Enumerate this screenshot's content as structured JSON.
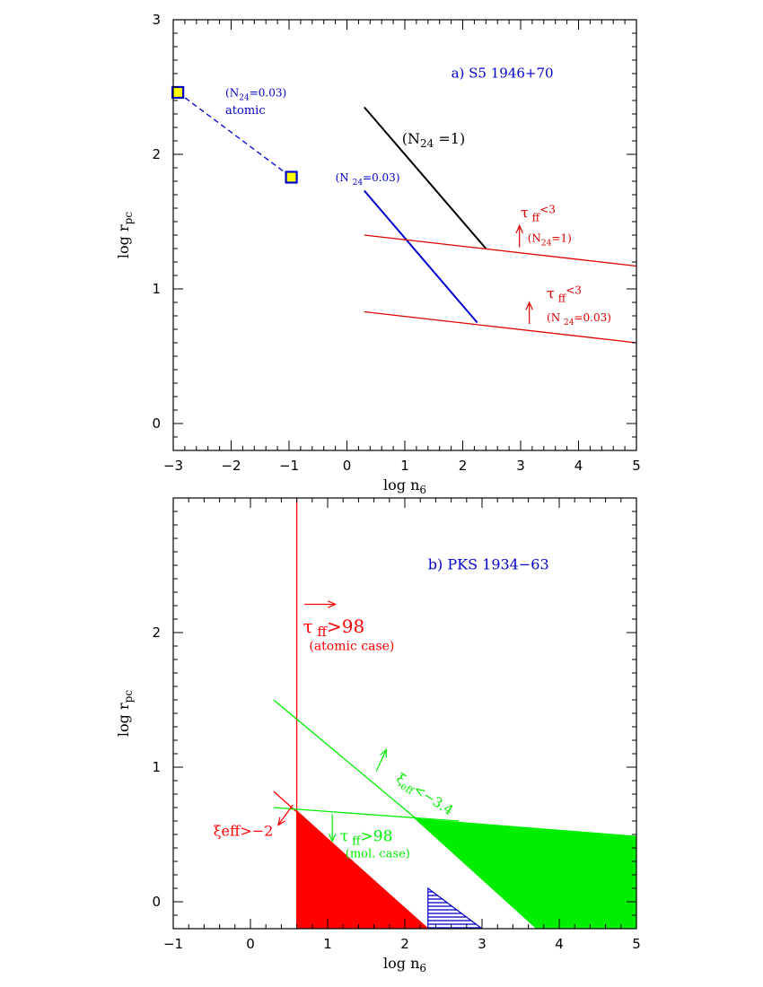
{
  "chart_data": [
    {
      "type": "line",
      "panel": "a",
      "title": "a) S5 1946+70",
      "xlabel": "log n",
      "xlabel_sub": "6",
      "ylabel": "log r",
      "ylabel_sub": "pc",
      "xlim": [
        -3,
        5
      ],
      "ylim": [
        -0.2,
        3
      ],
      "xticks": [
        "−3",
        "−2",
        "−1",
        "0",
        "1",
        "2",
        "3",
        "4",
        "5"
      ],
      "xtick_values": [
        -3,
        -2,
        -1,
        0,
        1,
        2,
        3,
        4,
        5
      ],
      "yticks": [
        "0",
        "1",
        "2",
        "3"
      ],
      "ytick_values": [
        0,
        1,
        2,
        3
      ],
      "colors": {
        "black": "#000000",
        "blue": "#0000cc",
        "red": "#dd0000",
        "yellow": "#ffff00",
        "green": "#00dd00"
      },
      "series": [
        {
          "id": "atomic-dashed",
          "color": "#0000cc",
          "style": "dashed",
          "points": [
            [
              -2.92,
              2.46
            ],
            [
              -0.96,
              1.83
            ]
          ]
        },
        {
          "id": "n24-1-black",
          "color": "#000000",
          "style": "solid",
          "points": [
            [
              0.3,
              2.35
            ],
            [
              2.4,
              1.3
            ]
          ]
        },
        {
          "id": "n24-003-blue",
          "color": "#0000cc",
          "style": "solid",
          "points": [
            [
              0.3,
              1.73
            ],
            [
              2.25,
              0.75
            ]
          ]
        },
        {
          "id": "tau-n24-1-red",
          "color": "#dd0000",
          "style": "solid",
          "points": [
            [
              0.3,
              1.4
            ],
            [
              5,
              1.17
            ]
          ]
        },
        {
          "id": "tau-n24-003-red",
          "color": "#dd0000",
          "style": "solid",
          "points": [
            [
              0.3,
              0.83
            ],
            [
              5,
              0.6
            ]
          ]
        }
      ],
      "markers": [
        {
          "id": "square-1",
          "x": -2.92,
          "y": 2.46,
          "fill": "#ffff00",
          "stroke": "#0000cc"
        },
        {
          "id": "square-2",
          "x": -0.96,
          "y": 1.83,
          "fill": "#ffff00",
          "stroke": "#0000cc"
        }
      ],
      "arrows": [
        {
          "id": "arrow-tau-1",
          "color": "#dd0000",
          "from": [
            2.98,
            1.31
          ],
          "to": [
            2.98,
            1.47
          ]
        },
        {
          "id": "arrow-tau-2",
          "color": "#dd0000",
          "from": [
            3.15,
            0.74
          ],
          "to": [
            3.15,
            0.9
          ]
        }
      ],
      "annotations": [
        {
          "id": "title",
          "x": 1.8,
          "y": 2.57,
          "color": "#0000cc",
          "size": 15,
          "parts": [
            {
              "t": "a) S5 1946+70"
            }
          ]
        },
        {
          "id": "atomic-n24",
          "x": -2.1,
          "y": 2.43,
          "color": "#0000cc",
          "size": 12,
          "parts": [
            {
              "t": "(N"
            },
            {
              "t": "24",
              "sub": true
            },
            {
              "t": "=0.03)"
            }
          ]
        },
        {
          "id": "atomic-word",
          "x": -2.1,
          "y": 2.3,
          "color": "#0000cc",
          "size": 13,
          "parts": [
            {
              "t": "atomic"
            }
          ]
        },
        {
          "id": "label-n24-1",
          "x": 0.95,
          "y": 2.08,
          "color": "#000000",
          "size": 16,
          "parts": [
            {
              "t": "(N"
            },
            {
              "t": "24",
              "sub": true
            },
            {
              "t": " =1)"
            }
          ]
        },
        {
          "id": "label-n24-003-blue",
          "x": -0.2,
          "y": 1.8,
          "color": "#0000cc",
          "size": 12,
          "parts": [
            {
              "t": "(N "
            },
            {
              "t": "24",
              "sub": true
            },
            {
              "t": "=0.03)"
            }
          ]
        },
        {
          "id": "tau-1-symbol",
          "x": 3.0,
          "y": 1.53,
          "color": "#dd0000",
          "size": 16,
          "parts": [
            {
              "t": "τ"
            },
            {
              "t": " ff",
              "sub": true
            },
            {
              "t": "<3",
              "sup": true
            }
          ]
        },
        {
          "id": "tau-1-n24",
          "x": 3.12,
          "y": 1.35,
          "color": "#dd0000",
          "size": 12,
          "parts": [
            {
              "t": "(N"
            },
            {
              "t": "24",
              "sub": true
            },
            {
              "t": "=1)"
            }
          ]
        },
        {
          "id": "tau-2-symbol",
          "x": 3.45,
          "y": 0.93,
          "color": "#dd0000",
          "size": 16,
          "parts": [
            {
              "t": "τ"
            },
            {
              "t": " ff",
              "sub": true
            },
            {
              "t": "<3",
              "sup": true
            }
          ]
        },
        {
          "id": "tau-2-n24",
          "x": 3.45,
          "y": 0.76,
          "color": "#dd0000",
          "size": 12,
          "parts": [
            {
              "t": "(N "
            },
            {
              "t": "24",
              "sub": true
            },
            {
              "t": "=0.03)"
            }
          ]
        }
      ]
    },
    {
      "type": "area",
      "panel": "b",
      "title": "b) PKS 1934−63",
      "xlabel": "log n",
      "xlabel_sub": "6",
      "ylabel": "log r",
      "ylabel_sub": "pc",
      "xlim": [
        -1,
        5
      ],
      "ylim": [
        -0.2,
        3
      ],
      "xticks": [
        "−1",
        "0",
        "1",
        "2",
        "3",
        "4",
        "5"
      ],
      "xtick_values": [
        -1,
        0,
        1,
        2,
        3,
        4,
        5
      ],
      "yticks": [
        "0",
        "1",
        "2"
      ],
      "ytick_values": [
        0,
        1,
        2
      ],
      "colors": {
        "red": "#ff0000",
        "green": "#00ee00",
        "blue": "#0000cc",
        "black": "#000000"
      },
      "regions": [
        {
          "id": "red-region",
          "fill": "#ff0000",
          "points": [
            [
              0.6,
              0.68
            ],
            [
              0.6,
              -0.2
            ],
            [
              2.3,
              -0.2
            ]
          ]
        },
        {
          "id": "green-region",
          "fill": "#00ee00",
          "points": [
            [
              2.12,
              0.62
            ],
            [
              5,
              0.49
            ],
            [
              5,
              -0.2
            ],
            [
              3.7,
              -0.2
            ]
          ]
        }
      ],
      "hatched": [
        {
          "id": "blue-hatch",
          "color": "#0000cc",
          "points": [
            [
              2.3,
              0.1
            ],
            [
              3.0,
              -0.2
            ],
            [
              2.3,
              -0.2
            ]
          ]
        }
      ],
      "series": [
        {
          "id": "tau-atomic-vertical",
          "color": "#ff0000",
          "style": "solid",
          "points": [
            [
              0.6,
              -0.2
            ],
            [
              0.6,
              3.0
            ]
          ]
        },
        {
          "id": "xi-gt-minus2",
          "color": "#ff0000",
          "style": "solid",
          "points": [
            [
              0.3,
              0.82
            ],
            [
              2.3,
              -0.2
            ]
          ]
        },
        {
          "id": "xi-lt-minus34",
          "color": "#00ee00",
          "style": "solid",
          "points": [
            [
              0.3,
              1.5
            ],
            [
              2.6,
              0.4
            ]
          ]
        },
        {
          "id": "tau-mol",
          "color": "#00ee00",
          "style": "solid",
          "points": [
            [
              0.3,
              0.7
            ],
            [
              2.7,
              0.6
            ]
          ]
        }
      ],
      "arrows": [
        {
          "id": "arrow-tau-atomic",
          "color": "#ff0000",
          "from": [
            0.7,
            2.21
          ],
          "to": [
            1.1,
            2.21
          ]
        },
        {
          "id": "arrow-xi-red",
          "color": "#ff0000",
          "from": [
            0.55,
            0.72
          ],
          "to": [
            0.36,
            0.57
          ]
        },
        {
          "id": "arrow-xi-green",
          "color": "#00ee00",
          "from": [
            1.63,
            0.97
          ],
          "to": [
            1.76,
            1.13
          ]
        },
        {
          "id": "arrow-tau-mol",
          "color": "#00ee00",
          "from": [
            1.06,
            0.65
          ],
          "to": [
            1.06,
            0.45
          ]
        }
      ],
      "annotations": [
        {
          "id": "title",
          "x": 2.3,
          "y": 2.47,
          "color": "#0000cc",
          "size": 16,
          "parts": [
            {
              "t": "b) PKS 1934−63"
            }
          ]
        },
        {
          "id": "tau-atomic-symbol",
          "x": 0.68,
          "y": 2.0,
          "color": "#ff0000",
          "size": 20,
          "parts": [
            {
              "t": "τ"
            },
            {
              "t": " ff",
              "sub": true
            },
            {
              "t": ">98"
            }
          ]
        },
        {
          "id": "tau-atomic-case",
          "x": 0.76,
          "y": 1.87,
          "color": "#ff0000",
          "size": 14,
          "parts": [
            {
              "t": "(atomic case)"
            }
          ]
        },
        {
          "id": "xi-gt-minus2",
          "x": -0.48,
          "y": 0.49,
          "color": "#ff0000",
          "size": 16,
          "parts": [
            {
              "t": "ξ"
            },
            {
              "t": "eff>−2"
            }
          ]
        },
        {
          "id": "xi-lt-minus34",
          "x": 1.88,
          "y": 0.9,
          "color": "#00ee00",
          "size": 15,
          "rotate": 33,
          "parts": [
            {
              "t": "ξ"
            },
            {
              "t": "eff",
              "sub": true
            },
            {
              "t": "<−3.4"
            }
          ]
        },
        {
          "id": "tau-mol-symbol",
          "x": 1.16,
          "y": 0.45,
          "color": "#00ee00",
          "size": 17,
          "parts": [
            {
              "t": "τ"
            },
            {
              "t": " ff",
              "sub": true
            },
            {
              "t": ">98"
            }
          ]
        },
        {
          "id": "tau-mol-case",
          "x": 1.23,
          "y": 0.33,
          "color": "#00ee00",
          "size": 13,
          "parts": [
            {
              "t": "(mol. case)"
            }
          ]
        }
      ]
    }
  ]
}
